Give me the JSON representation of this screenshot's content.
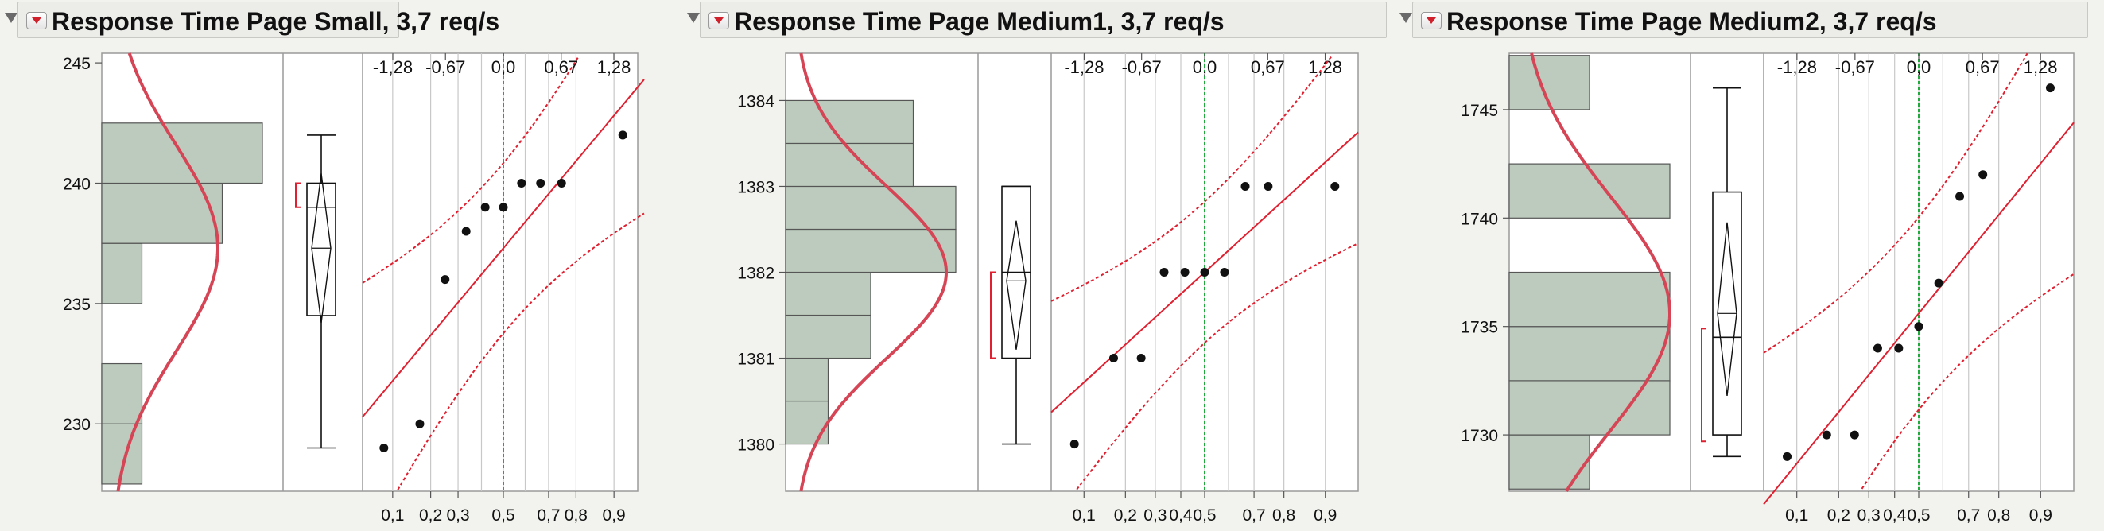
{
  "chart_data": [
    {
      "type": "histogram",
      "title": "Response Time Page Small, 3,7 req/s",
      "ylim": [
        227.2,
        245.4
      ],
      "y_ticks": [
        "245",
        "240",
        "235",
        "230"
      ],
      "histogram_bins": [
        {
          "from": 227.5,
          "to": 230,
          "count": 1
        },
        {
          "from": 230,
          "to": 232.5,
          "count": 1
        },
        {
          "from": 235,
          "to": 237.5,
          "count": 1
        },
        {
          "from": 237.5,
          "to": 240,
          "count": 3
        },
        {
          "from": 240,
          "to": 242.5,
          "count": 4
        }
      ],
      "normal_fit": {
        "mean": 237.3,
        "sd": 4.3
      },
      "box_plot": {
        "min": 229,
        "q1": 234.5,
        "median": 239,
        "q3": 240,
        "max": 242,
        "mean": 237.3,
        "mean_ci": [
          234.2,
          240.4
        ],
        "shortest_half": [
          239,
          240
        ]
      },
      "quantile_plot": {
        "points": [
          [
            0.0833,
            229
          ],
          [
            0.1667,
            230
          ],
          [
            0.25,
            236
          ],
          [
            0.3333,
            238
          ],
          [
            0.4167,
            239
          ],
          [
            0.5,
            239
          ],
          [
            0.5833,
            240
          ],
          [
            0.6667,
            240
          ],
          [
            0.75,
            240
          ],
          [
            0.9167,
            242
          ]
        ],
        "top_ticks": [
          "-1,28",
          "-0,67",
          "0,0",
          "0,67",
          "1,28"
        ],
        "bottom_ticks": [
          "0,1",
          "0,2",
          "0,3",
          "0,5",
          "0,7",
          "0,8",
          "0,9"
        ]
      }
    },
    {
      "type": "histogram",
      "title": "Response Time Page Medium1, 3,7 req/s",
      "ylim": [
        1379.45,
        1384.55
      ],
      "y_ticks": [
        "1384",
        "1383",
        "1382",
        "1381",
        "1380"
      ],
      "histogram_bins": [
        {
          "from": 1380,
          "to": 1380.5,
          "count": 1
        },
        {
          "from": 1380.5,
          "to": 1381,
          "count": 1
        },
        {
          "from": 1381,
          "to": 1381.5,
          "count": 2
        },
        {
          "from": 1381.5,
          "to": 1382,
          "count": 2
        },
        {
          "from": 1382,
          "to": 1382.5,
          "count": 4
        },
        {
          "from": 1382.5,
          "to": 1383,
          "count": 4
        },
        {
          "from": 1383,
          "to": 1383.5,
          "count": 3
        },
        {
          "from": 1383.5,
          "to": 1384,
          "count": 3
        }
      ],
      "normal_fit": {
        "mean": 1382,
        "sd": 1.0
      },
      "box_plot": {
        "min": 1380,
        "q1": 1381,
        "median": 1382,
        "q3": 1383,
        "max": 1383,
        "mean": 1381.9,
        "mean_ci": [
          1381.1,
          1382.6
        ],
        "shortest_half": [
          1381,
          1382
        ]
      },
      "quantile_plot": {
        "points": [
          [
            0.0833,
            1380
          ],
          [
            0.1667,
            1381
          ],
          [
            0.25,
            1381
          ],
          [
            0.3333,
            1382
          ],
          [
            0.4167,
            1382
          ],
          [
            0.5,
            1382
          ],
          [
            0.5833,
            1382
          ],
          [
            0.6667,
            1383
          ],
          [
            0.75,
            1383
          ],
          [
            0.9167,
            1383
          ]
        ],
        "top_ticks": [
          "-1,28",
          "-0,67",
          "0,0",
          "0,67",
          "1,28"
        ],
        "bottom_ticks": [
          "0,1",
          "0,2",
          "0,3",
          "0,4",
          "0,5",
          "0,7",
          "0,8",
          "0,9"
        ]
      }
    },
    {
      "type": "histogram",
      "title": "Response Time Page Medium2, 3,7 req/s",
      "ylim": [
        1727.4,
        1747.6
      ],
      "y_ticks": [
        "1745",
        "1740",
        "1735",
        "1730"
      ],
      "histogram_bins": [
        {
          "from": 1727.5,
          "to": 1730,
          "count": 1
        },
        {
          "from": 1730,
          "to": 1732.5,
          "count": 2
        },
        {
          "from": 1732.5,
          "to": 1735,
          "count": 2
        },
        {
          "from": 1735,
          "to": 1737.5,
          "count": 2
        },
        {
          "from": 1740,
          "to": 1742.5,
          "count": 2
        },
        {
          "from": 1745,
          "to": 1747.5,
          "count": 1
        }
      ],
      "normal_fit": {
        "mean": 1735.6,
        "sd": 5.4
      },
      "box_plot": {
        "min": 1729,
        "q1": 1730,
        "median": 1734.5,
        "q3": 1741.2,
        "max": 1746,
        "mean": 1735.6,
        "mean_ci": [
          1731.8,
          1739.8
        ],
        "shortest_half": [
          1729.7,
          1734.9
        ]
      },
      "quantile_plot": {
        "points": [
          [
            0.0833,
            1729
          ],
          [
            0.1667,
            1730
          ],
          [
            0.25,
            1730
          ],
          [
            0.3333,
            1734
          ],
          [
            0.4167,
            1734
          ],
          [
            0.5,
            1735
          ],
          [
            0.5833,
            1737
          ],
          [
            0.6667,
            1741
          ],
          [
            0.75,
            1742
          ],
          [
            0.9167,
            1746
          ]
        ],
        "top_ticks": [
          "-1,28",
          "-0,67",
          "0,0",
          "0,67",
          "1,28"
        ],
        "bottom_ticks": [
          "0,1",
          "0,2",
          "0,3",
          "0,4",
          "0,5",
          "0,7",
          "0,8",
          "0,9"
        ]
      }
    }
  ],
  "colors": {
    "bar_fill": "#bccbbd",
    "bar_stroke": "#565656",
    "fit_curve": "#d64556",
    "qq_line": "#e02030",
    "median_line": "#1faa3c",
    "grid": "#c8c8c8",
    "point": "#111111"
  }
}
